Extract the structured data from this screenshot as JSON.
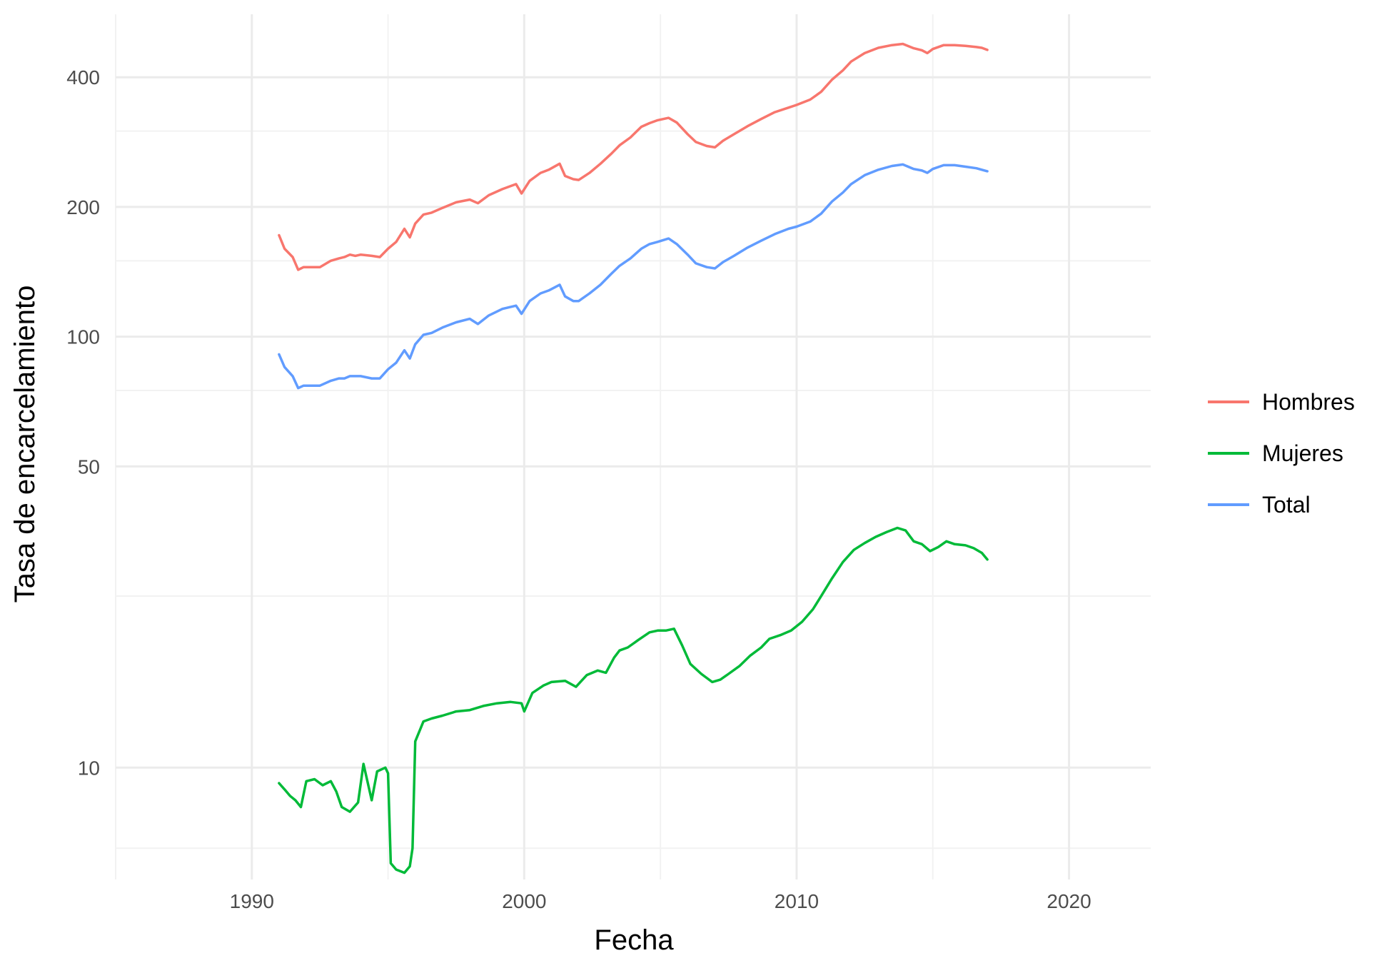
{
  "chart_data": {
    "type": "line",
    "title": "",
    "xlabel": "Fecha",
    "ylabel": "Tasa de encarcelamiento",
    "y_scale": "log",
    "xlim": [
      1985,
      2023
    ],
    "ylim": [
      5.5,
      560
    ],
    "x_ticks": [
      1990,
      2000,
      2010,
      2020
    ],
    "x_tick_labels": [
      "1990",
      "2000",
      "2010",
      "2020"
    ],
    "y_ticks": [
      10,
      50,
      100,
      200,
      400
    ],
    "y_tick_labels": [
      "10",
      "50",
      "100",
      "200",
      "400"
    ],
    "y_minor_ticks": [
      6.5,
      25,
      75,
      150,
      300
    ],
    "grid": true,
    "legend_position": "right",
    "series": [
      {
        "name": "Hombres",
        "color": "#F8766D",
        "x": [
          1991.0,
          1991.2,
          1991.5,
          1991.7,
          1991.9,
          1992.2,
          1992.5,
          1992.9,
          1993.2,
          1993.4,
          1993.6,
          1993.8,
          1994.0,
          1994.4,
          1994.7,
          1995.0,
          1995.3,
          1995.6,
          1995.8,
          1996.0,
          1996.3,
          1996.6,
          1997.0,
          1997.5,
          1998.0,
          1998.3,
          1998.7,
          1999.2,
          1999.7,
          1999.9,
          2000.2,
          2000.6,
          2000.9,
          2001.3,
          2001.5,
          2001.8,
          2002.0,
          2002.4,
          2002.8,
          2003.2,
          2003.5,
          2003.9,
          2004.3,
          2004.6,
          2004.9,
          2005.3,
          2005.6,
          2006.0,
          2006.3,
          2006.7,
          2007.0,
          2007.3,
          2007.7,
          2008.2,
          2008.7,
          2009.2,
          2009.7,
          2010.0,
          2010.5,
          2010.9,
          2011.3,
          2011.7,
          2012.0,
          2012.5,
          2013.0,
          2013.5,
          2013.9,
          2014.3,
          2014.6,
          2014.8,
          2015.0,
          2015.4,
          2015.8,
          2016.2,
          2016.6,
          2016.8,
          2017.0
        ],
        "values": [
          172,
          160,
          153,
          143,
          145,
          145,
          145,
          150,
          152,
          153,
          155,
          154,
          155,
          154,
          153,
          160,
          166,
          178,
          170,
          183,
          192,
          194,
          199,
          205,
          208,
          204,
          213,
          220,
          226,
          215,
          230,
          240,
          244,
          252,
          236,
          232,
          231,
          240,
          252,
          266,
          278,
          290,
          307,
          313,
          318,
          322,
          314,
          295,
          283,
          277,
          275,
          285,
          295,
          308,
          320,
          332,
          340,
          345,
          355,
          370,
          395,
          415,
          435,
          455,
          468,
          475,
          478,
          467,
          462,
          455,
          465,
          475,
          475,
          473,
          470,
          468,
          463
        ]
      },
      {
        "name": "Mujeres",
        "color": "#00BA38",
        "x": [
          1991.0,
          1991.2,
          1991.4,
          1991.6,
          1991.8,
          1992.0,
          1992.3,
          1992.6,
          1992.9,
          1993.1,
          1993.3,
          1993.6,
          1993.9,
          1994.1,
          1994.4,
          1994.6,
          1994.9,
          1995.0,
          1995.1,
          1995.3,
          1995.6,
          1995.8,
          1995.9,
          1996.0,
          1996.3,
          1996.6,
          1997.0,
          1997.5,
          1998.0,
          1998.5,
          1999.0,
          1999.5,
          1999.9,
          2000.0,
          2000.3,
          2000.7,
          2001.0,
          2001.5,
          2001.9,
          2002.3,
          2002.7,
          2003.0,
          2003.3,
          2003.5,
          2003.8,
          2004.2,
          2004.6,
          2004.9,
          2005.2,
          2005.5,
          2005.8,
          2006.1,
          2006.5,
          2006.9,
          2007.2,
          2007.5,
          2007.9,
          2008.3,
          2008.7,
          2009.0,
          2009.4,
          2009.8,
          2010.2,
          2010.6,
          2010.9,
          2011.3,
          2011.7,
          2012.1,
          2012.5,
          2012.9,
          2013.3,
          2013.7,
          2014.0,
          2014.3,
          2014.6,
          2014.9,
          2015.2,
          2015.5,
          2015.8,
          2016.2,
          2016.5,
          2016.8,
          2017.0
        ],
        "values": [
          9.2,
          8.9,
          8.6,
          8.4,
          8.1,
          9.3,
          9.4,
          9.1,
          9.3,
          8.8,
          8.1,
          7.9,
          8.3,
          10.2,
          8.4,
          9.8,
          10.0,
          9.7,
          6.0,
          5.8,
          5.7,
          5.9,
          6.5,
          11.5,
          12.8,
          13.0,
          13.2,
          13.5,
          13.6,
          13.9,
          14.1,
          14.2,
          14.1,
          13.5,
          14.9,
          15.5,
          15.8,
          15.9,
          15.4,
          16.4,
          16.8,
          16.6,
          18.0,
          18.7,
          19.0,
          19.8,
          20.6,
          20.8,
          20.8,
          21.0,
          19.2,
          17.4,
          16.5,
          15.8,
          16.0,
          16.5,
          17.2,
          18.2,
          19.0,
          19.9,
          20.3,
          20.8,
          21.8,
          23.3,
          25.0,
          27.5,
          30.0,
          32.0,
          33.2,
          34.3,
          35.2,
          36.0,
          35.5,
          33.5,
          33.0,
          31.8,
          32.5,
          33.5,
          33.0,
          32.8,
          32.3,
          31.5,
          30.4
        ]
      },
      {
        "name": "Total",
        "color": "#619CFF",
        "x": [
          1991.0,
          1991.2,
          1991.5,
          1991.7,
          1991.9,
          1992.2,
          1992.5,
          1992.9,
          1993.2,
          1993.4,
          1993.6,
          1993.8,
          1994.0,
          1994.4,
          1994.7,
          1995.0,
          1995.3,
          1995.6,
          1995.8,
          1996.0,
          1996.3,
          1996.6,
          1997.0,
          1997.5,
          1998.0,
          1998.3,
          1998.7,
          1999.2,
          1999.7,
          1999.9,
          2000.2,
          2000.6,
          2000.9,
          2001.3,
          2001.5,
          2001.8,
          2002.0,
          2002.4,
          2002.8,
          2003.2,
          2003.5,
          2003.9,
          2004.3,
          2004.6,
          2004.9,
          2005.3,
          2005.6,
          2006.0,
          2006.3,
          2006.7,
          2007.0,
          2007.3,
          2007.7,
          2008.2,
          2008.7,
          2009.2,
          2009.7,
          2010.0,
          2010.5,
          2010.9,
          2011.3,
          2011.7,
          2012.0,
          2012.5,
          2013.0,
          2013.5,
          2013.9,
          2014.3,
          2014.6,
          2014.8,
          2015.0,
          2015.4,
          2015.8,
          2016.2,
          2016.6,
          2016.8,
          2017.0
        ],
        "values": [
          91,
          85,
          81,
          76,
          77,
          77,
          77,
          79,
          80,
          80,
          81,
          81,
          81,
          80,
          80,
          84,
          87,
          93,
          89,
          96,
          101,
          102,
          105,
          108,
          110,
          107,
          112,
          116,
          118,
          113,
          121,
          126,
          128,
          132,
          124,
          121,
          121,
          126,
          132,
          140,
          146,
          152,
          160,
          164,
          166,
          169,
          164,
          155,
          148,
          145,
          144,
          149,
          154,
          161,
          167,
          173,
          178,
          180,
          185,
          193,
          206,
          216,
          226,
          237,
          244,
          249,
          251,
          245,
          243,
          240,
          245,
          250,
          250,
          248,
          246,
          244,
          242
        ]
      }
    ]
  }
}
